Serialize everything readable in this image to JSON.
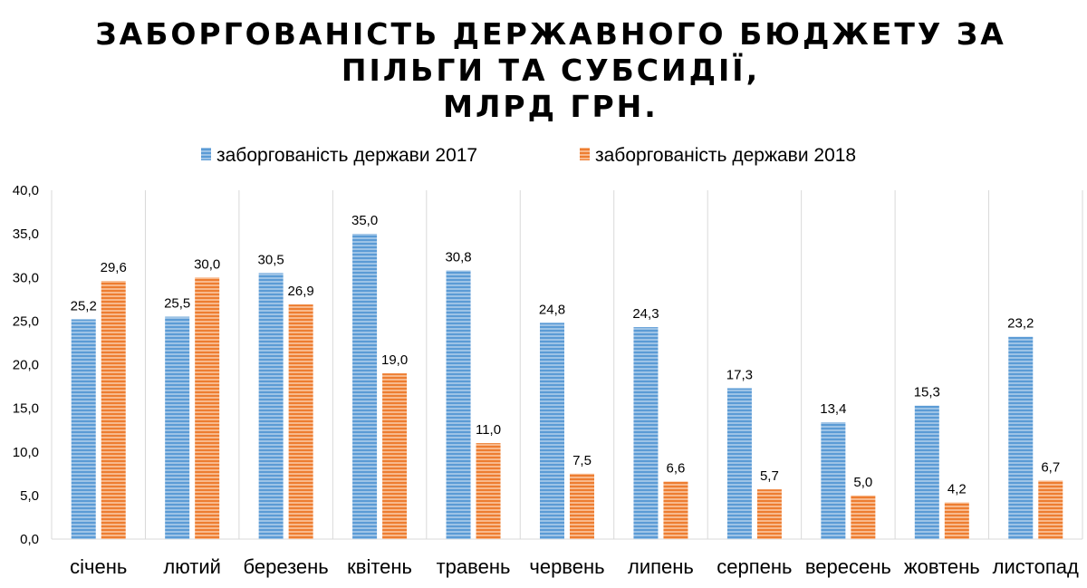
{
  "chart_data": {
    "type": "bar",
    "title": "ЗАБОРГОВАНІСТЬ ДЕРЖАВНОГО БЮДЖЕТУ ЗА\nПІЛЬГИ ТА СУБСИДІЇ,\nМЛРД ГРН.",
    "xlabel": "",
    "ylabel": "",
    "ylim": [
      0,
      40
    ],
    "yticks": [
      "0,0",
      "5,0",
      "10,0",
      "15,0",
      "20,0",
      "25,0",
      "30,0",
      "35,0",
      "40,0"
    ],
    "grid": "vertical category separators",
    "legend_position": "top",
    "categories": [
      "січень",
      "лютий",
      "березень",
      "квітень",
      "травень",
      "червень",
      "липень",
      "серпень",
      "вересень",
      "жовтень",
      "листопад"
    ],
    "series": [
      {
        "name": "заборгованість держави 2017",
        "color": "#5b9bd5",
        "values": [
          25.2,
          25.5,
          30.5,
          35.0,
          30.8,
          24.8,
          24.3,
          17.3,
          13.4,
          15.3,
          23.2
        ],
        "labels": [
          "25,2",
          "25,5",
          "30,5",
          "35,0",
          "30,8",
          "24,8",
          "24,3",
          "17,3",
          "13,4",
          "15,3",
          "23,2"
        ]
      },
      {
        "name": "заборгованість держави 2018",
        "color": "#ed7d31",
        "values": [
          29.6,
          30.0,
          26.9,
          19.0,
          11.0,
          7.5,
          6.6,
          5.7,
          5.0,
          4.2,
          6.7
        ],
        "labels": [
          "29,6",
          "30,0",
          "26,9",
          "19,0",
          "11,0",
          "7,5",
          "6,6",
          "5,7",
          "5,0",
          "4,2",
          "6,7"
        ]
      }
    ]
  }
}
